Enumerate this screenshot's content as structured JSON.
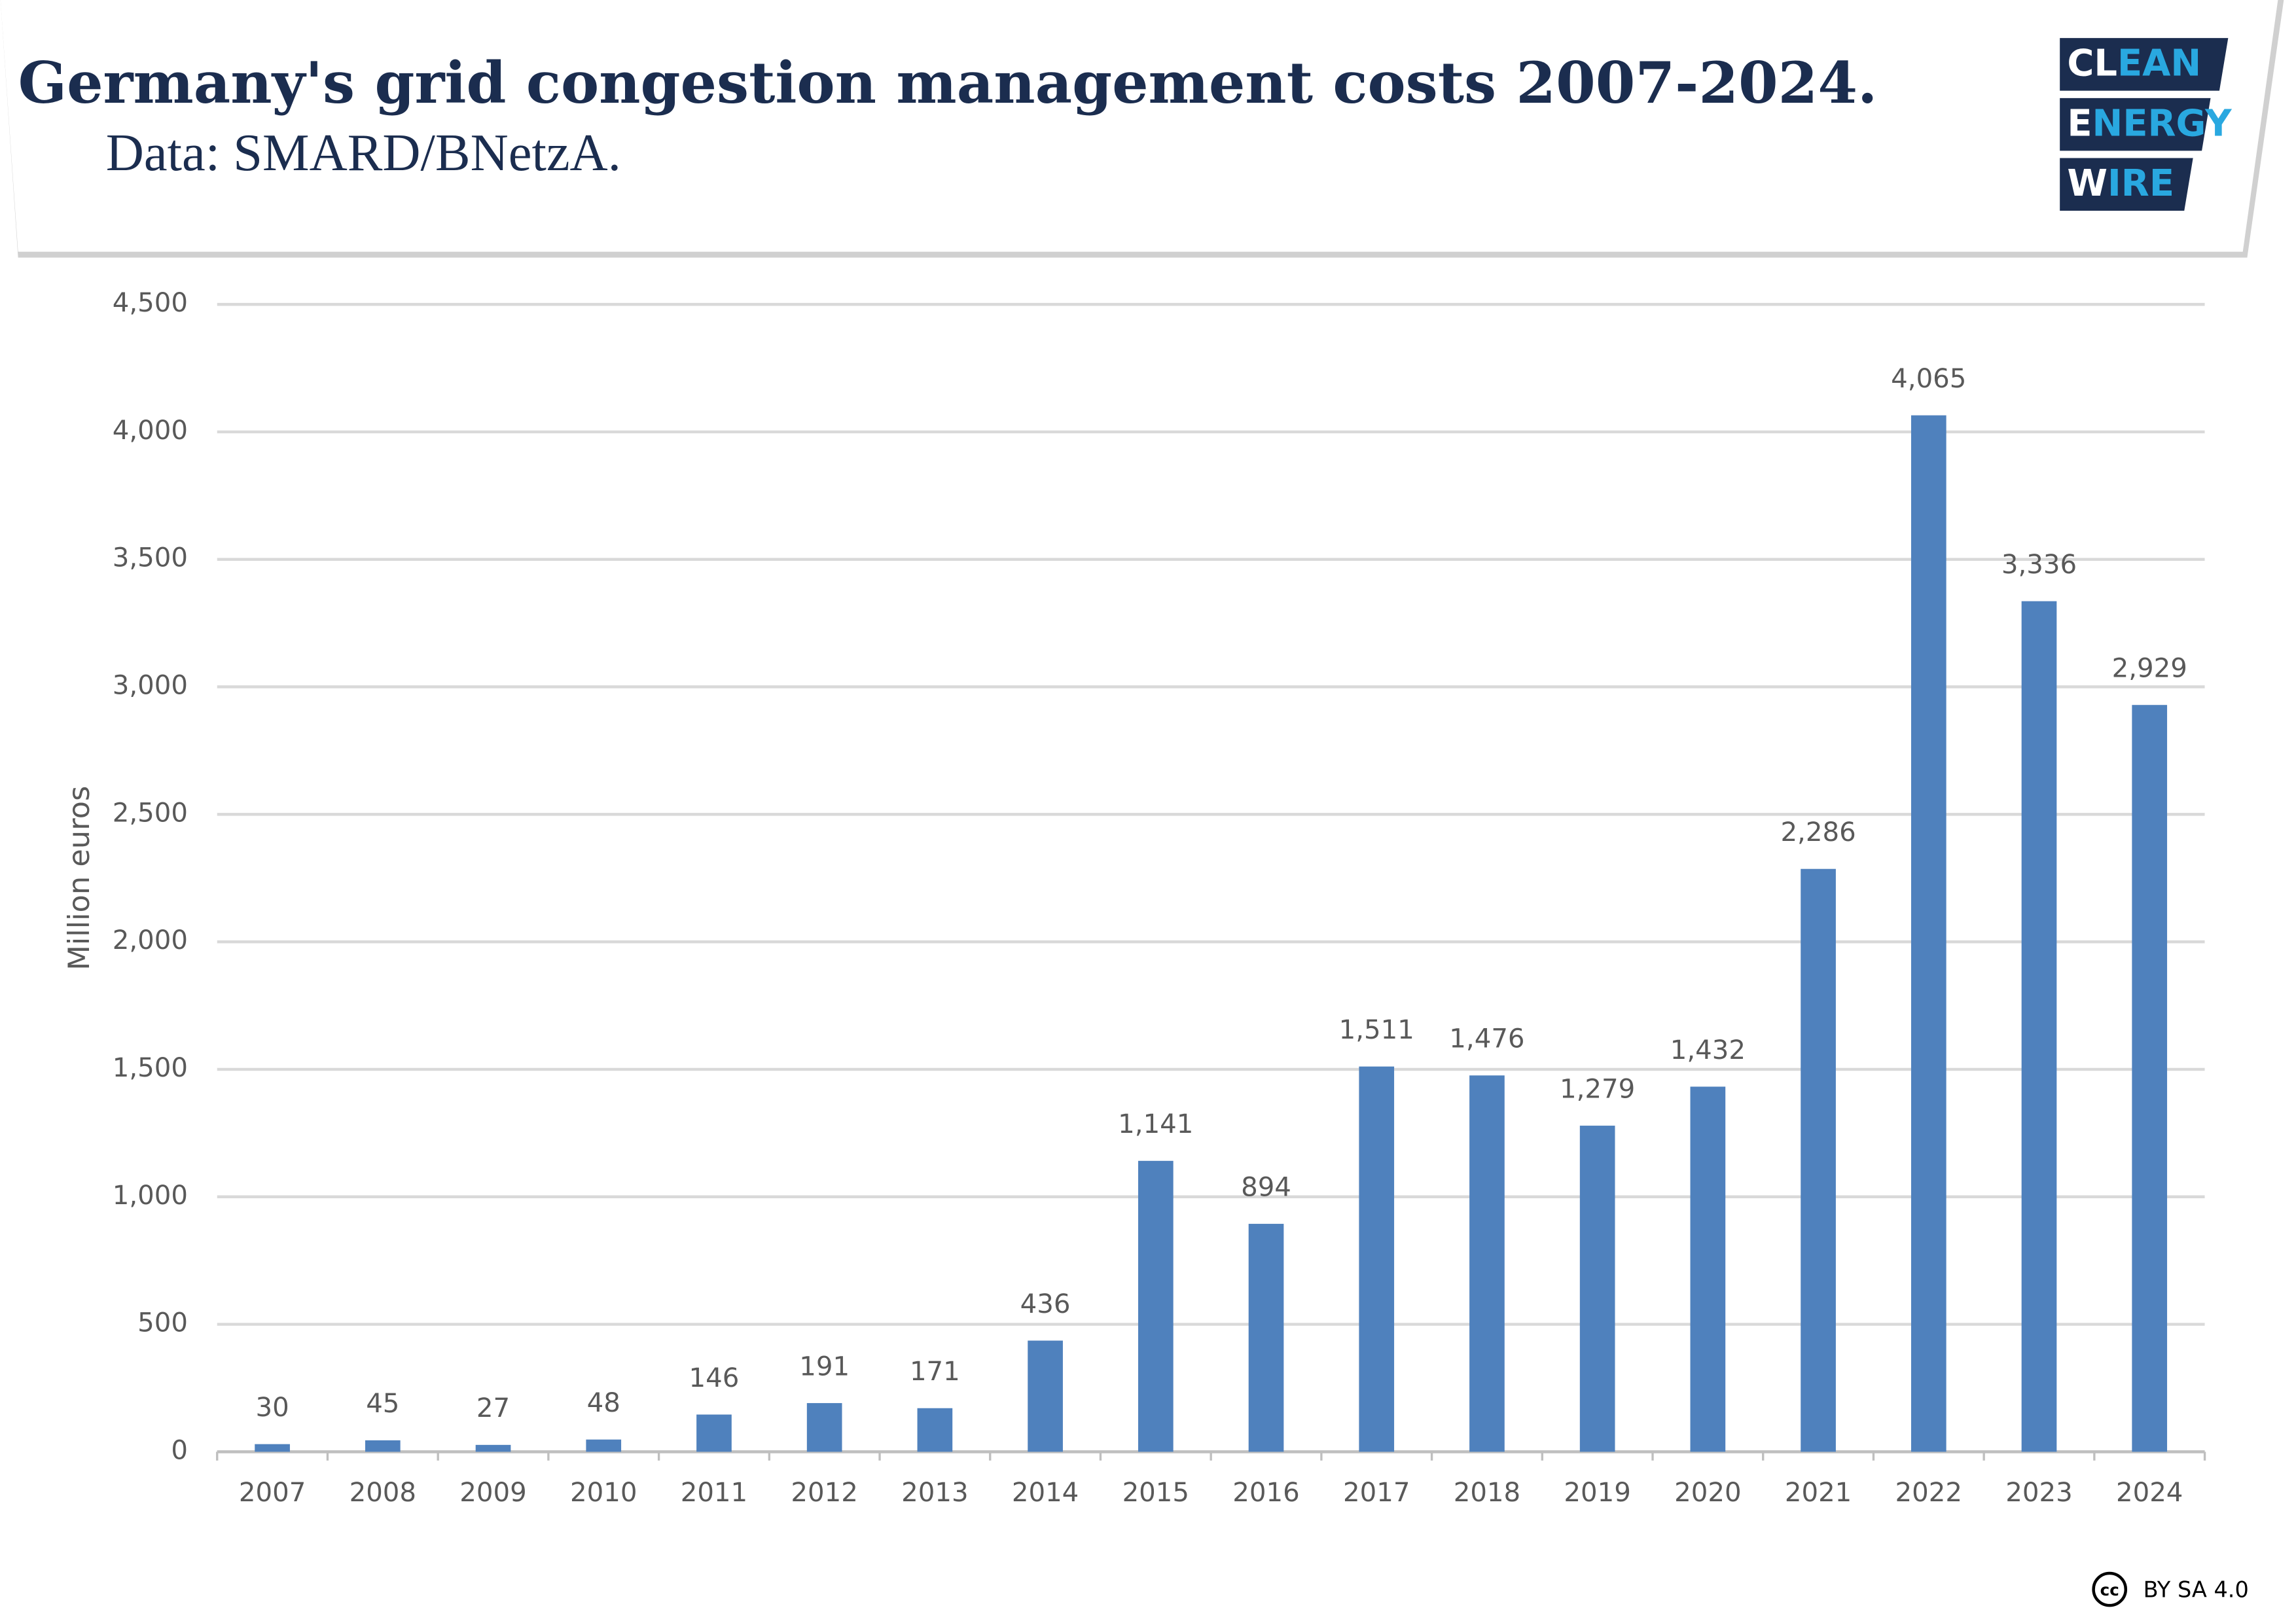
{
  "chart_data": {
    "type": "bar",
    "title": "Germany's grid congestion management costs 2007-2024.",
    "subtitle": "Data: SMARD/BNetzA.",
    "y_label": "Million euros",
    "categories": [
      "2007",
      "2008",
      "2009",
      "2010",
      "2011",
      "2012",
      "2013",
      "2014",
      "2015",
      "2016",
      "2017",
      "2018",
      "2019",
      "2020",
      "2021",
      "2022",
      "2023",
      "2024"
    ],
    "values": [
      30,
      45,
      27,
      48,
      146,
      191,
      171,
      436,
      1141,
      894,
      1511,
      1476,
      1279,
      1432,
      2286,
      4065,
      3336,
      2929
    ],
    "value_labels": [
      "30",
      "45",
      "27",
      "48",
      "146",
      "191",
      "171",
      "436",
      "1,141",
      "894",
      "1,511",
      "1,476",
      "1,279",
      "1,432",
      "2,286",
      "4,065",
      "3,336",
      "2,929"
    ],
    "color": "#4f81bd",
    "ylim": [
      0,
      4500
    ],
    "yticks": [
      0,
      500,
      {
        "value": 1000,
        "label": "1,000"
      },
      {
        "value": 1500,
        "label": "1,500"
      },
      {
        "value": 2000,
        "label": "2,000"
      },
      {
        "value": 2500,
        "label": "2,500"
      },
      {
        "value": 3000,
        "label": "3,000"
      },
      {
        "value": 3500,
        "label": "3,500"
      },
      {
        "value": 4000,
        "label": "4,000"
      },
      {
        "value": 4500,
        "label": "4,500"
      }
    ],
    "grid": true
  },
  "logo": [
    [
      "CL",
      "EAN"
    ],
    [
      "E",
      "NERGY"
    ],
    [
      "W",
      "IRE"
    ]
  ],
  "license": {
    "icon": "cc",
    "text": "BY SA 4.0"
  }
}
